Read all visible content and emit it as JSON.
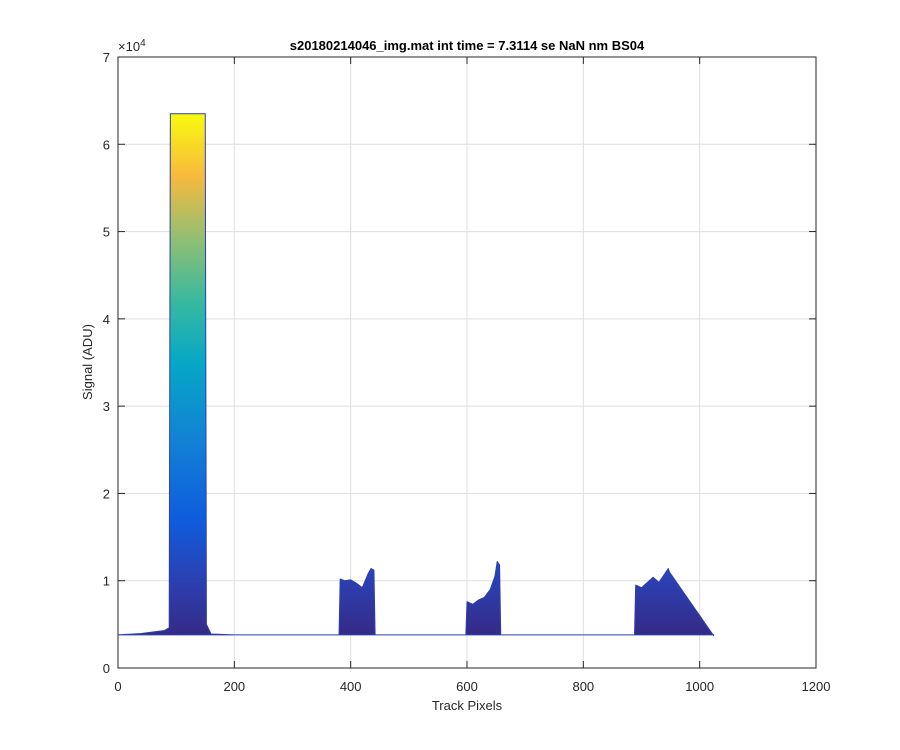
{
  "chart_data": {
    "type": "area",
    "title": "s20180214046_img.mat int time = 7.3114 se  NaN nm BS04",
    "xlabel": "Track Pixels",
    "ylabel": "Signal (ADU)",
    "y_exponent_label": "×10",
    "y_exponent_power": "4",
    "xlim": [
      0,
      1200
    ],
    "ylim": [
      0,
      70000
    ],
    "xticks": [
      0,
      200,
      400,
      600,
      800,
      1000,
      1200
    ],
    "xtick_labels": [
      "0",
      "200",
      "400",
      "600",
      "800",
      "1000",
      "1200"
    ],
    "yticks": [
      0,
      10000,
      20000,
      30000,
      40000,
      50000,
      60000,
      70000
    ],
    "ytick_labels": [
      "0",
      "1",
      "2",
      "3",
      "4",
      "5",
      "6",
      "7"
    ],
    "grid": true,
    "colormap": "parula",
    "baseline": 3800,
    "x": [
      0,
      40,
      80,
      88,
      90,
      150,
      152,
      160,
      200,
      380,
      382,
      390,
      400,
      410,
      420,
      430,
      435,
      440,
      442,
      598,
      600,
      610,
      620,
      630,
      640,
      648,
      652,
      656,
      658,
      888,
      890,
      900,
      910,
      920,
      930,
      940,
      946,
      948,
      1024
    ],
    "values": [
      3800,
      3950,
      4300,
      4600,
      63500,
      63500,
      5000,
      3900,
      3800,
      3800,
      10200,
      10000,
      10100,
      9700,
      9200,
      10800,
      11400,
      11200,
      3800,
      3800,
      7600,
      7300,
      7800,
      8100,
      9000,
      10500,
      12200,
      11800,
      3800,
      3800,
      9500,
      9200,
      9800,
      10400,
      9800,
      10800,
      11400,
      11000,
      3700
    ],
    "colors": {
      "parula_low": "#352a87",
      "parula_mid_low": "#0f5cdd",
      "parula_mid": "#12beb9",
      "parula_mid_high": "#9ebe3a",
      "parula_high": "#f9fb0e"
    }
  }
}
